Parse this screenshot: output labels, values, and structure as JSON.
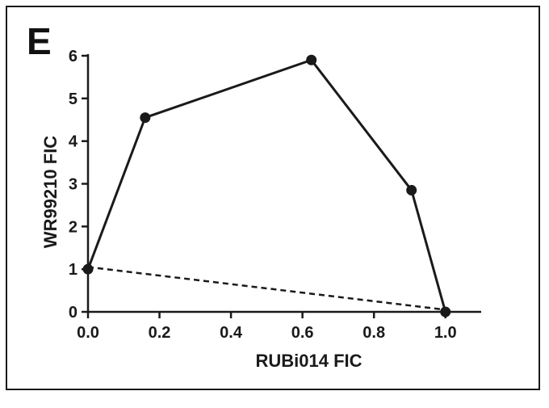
{
  "panel_label": "E",
  "chart_data": {
    "type": "line",
    "xlabel": "RUBi014 FIC",
    "ylabel": "WR99210 FIC",
    "xlim": [
      0,
      1.1
    ],
    "ylim": [
      0,
      6
    ],
    "x_ticks": [
      "0.0",
      "0.2",
      "0.4",
      "0.6",
      "0.8",
      "1.0"
    ],
    "y_ticks": [
      "0",
      "1",
      "2",
      "3",
      "4",
      "5",
      "6"
    ],
    "grid": false,
    "series": [
      {
        "style": "solid-with-markers",
        "color": "#1a1a1a",
        "x": [
          0.0,
          0.16,
          0.625,
          0.905,
          1.0
        ],
        "y": [
          1.0,
          4.55,
          5.9,
          2.85,
          0.0
        ]
      },
      {
        "style": "dashed",
        "color": "#1a1a1a",
        "x": [
          0.0,
          1.0
        ],
        "y": [
          1.05,
          0.05
        ]
      }
    ]
  }
}
